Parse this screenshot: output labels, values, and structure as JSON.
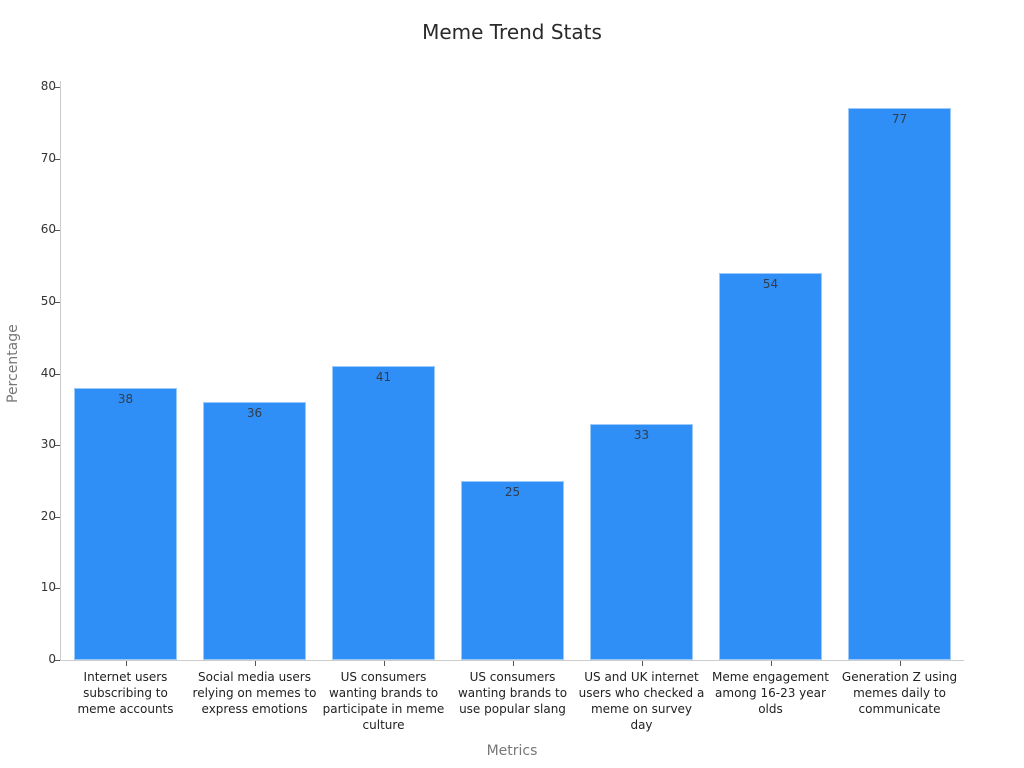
{
  "chart_data": {
    "type": "bar",
    "title": "Meme Trend Stats",
    "xlabel": "Metrics",
    "ylabel": "Percentage",
    "ylim": [
      0,
      80
    ],
    "yticks": [
      0,
      10,
      20,
      30,
      40,
      50,
      60,
      70,
      80
    ],
    "grid": false,
    "bar_color": "#2f8ff7",
    "categories": [
      "Internet users subscribing to meme accounts",
      "Social media users relying on memes to express emotions",
      "US consumers wanting brands to participate in meme culture",
      "US consumers wanting brands to use popular slang",
      "US and UK internet users who checked a meme on survey day",
      "Meme engagement among 16-23 year olds",
      "Generation Z using memes daily to communicate"
    ],
    "values": [
      38,
      36,
      41,
      25,
      33,
      54,
      77
    ]
  }
}
